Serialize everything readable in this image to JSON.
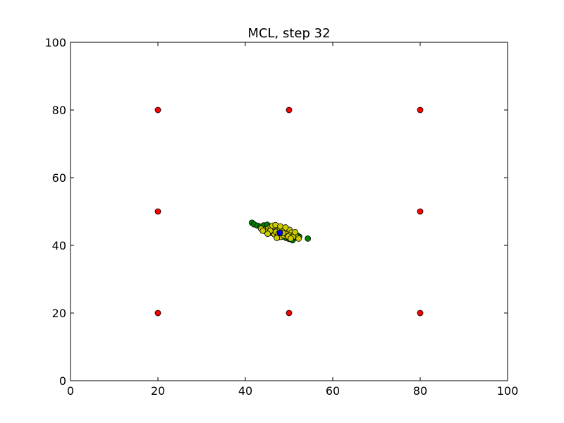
{
  "chart_data": {
    "type": "scatter",
    "title": "MCL, step 32",
    "xlabel": "",
    "ylabel": "",
    "xlim": [
      0,
      100
    ],
    "ylim": [
      0,
      100
    ],
    "xticks": [
      0,
      20,
      40,
      60,
      80,
      100
    ],
    "yticks": [
      0,
      20,
      40,
      60,
      80,
      100
    ],
    "grid": false,
    "series": [
      {
        "color": "#ff0000",
        "marker": "circle",
        "points": [
          [
            20,
            80
          ],
          [
            50,
            80
          ],
          [
            80,
            80
          ],
          [
            20,
            50
          ],
          [
            80,
            50
          ],
          [
            20,
            20
          ],
          [
            50,
            20
          ],
          [
            80,
            20
          ]
        ]
      },
      {
        "color": "#008000",
        "marker": "circle",
        "points": [
          [
            41.5,
            46.7
          ],
          [
            42.0,
            46.2
          ],
          [
            42.8,
            45.8
          ],
          [
            43.5,
            45.5
          ],
          [
            44.2,
            45.9
          ],
          [
            45.0,
            46.1
          ],
          [
            45.5,
            45.0
          ],
          [
            46.2,
            44.2
          ],
          [
            47.0,
            43.3
          ],
          [
            47.8,
            43.0
          ],
          [
            48.5,
            42.6
          ],
          [
            49.3,
            42.2
          ],
          [
            50.0,
            41.9
          ],
          [
            50.8,
            41.5
          ],
          [
            51.5,
            42.3
          ],
          [
            52.3,
            42.6
          ],
          [
            54.3,
            42.0
          ],
          [
            44.8,
            44.6
          ],
          [
            46.5,
            45.4
          ],
          [
            48.9,
            44.1
          ],
          [
            50.6,
            43.6
          ],
          [
            51.8,
            43.0
          ],
          [
            45.9,
            43.7
          ],
          [
            47.5,
            42.4
          ]
        ]
      },
      {
        "color": "#cccc00",
        "marker": "circle",
        "points": [
          [
            43.6,
            44.9
          ],
          [
            44.5,
            44.6
          ],
          [
            45.2,
            44.9
          ],
          [
            45.8,
            45.5
          ],
          [
            46.3,
            44.8
          ],
          [
            46.8,
            45.3
          ],
          [
            47.3,
            44.5
          ],
          [
            47.9,
            45.0
          ],
          [
            48.4,
            44.2
          ],
          [
            49.0,
            44.8
          ],
          [
            49.5,
            44.0
          ],
          [
            50.1,
            44.6
          ],
          [
            50.6,
            43.8
          ],
          [
            51.1,
            43.2
          ],
          [
            51.6,
            42.7
          ],
          [
            52.2,
            42.0
          ],
          [
            46.0,
            43.8
          ],
          [
            46.7,
            43.2
          ],
          [
            47.4,
            42.8
          ],
          [
            48.1,
            42.5
          ],
          [
            48.8,
            42.9
          ],
          [
            49.4,
            43.3
          ],
          [
            50.0,
            43.0
          ],
          [
            45.4,
            43.9
          ],
          [
            44.9,
            44.0
          ],
          [
            46.2,
            45.8
          ],
          [
            47.0,
            44.0
          ],
          [
            48.6,
            43.6
          ],
          [
            49.8,
            42.6
          ],
          [
            50.9,
            42.5
          ],
          [
            51.4,
            43.9
          ],
          [
            47.6,
            43.5
          ],
          [
            45.7,
            44.3
          ],
          [
            46.9,
            46.0
          ],
          [
            48.0,
            45.6
          ],
          [
            49.2,
            45.3
          ],
          [
            44.0,
            44.3
          ],
          [
            50.4,
            42.0
          ],
          [
            47.2,
            42.2
          ],
          [
            45.1,
            43.4
          ]
        ]
      },
      {
        "color": "#0000ff",
        "marker": "circle",
        "points": [
          [
            47.9,
            43.7
          ]
        ]
      }
    ]
  }
}
